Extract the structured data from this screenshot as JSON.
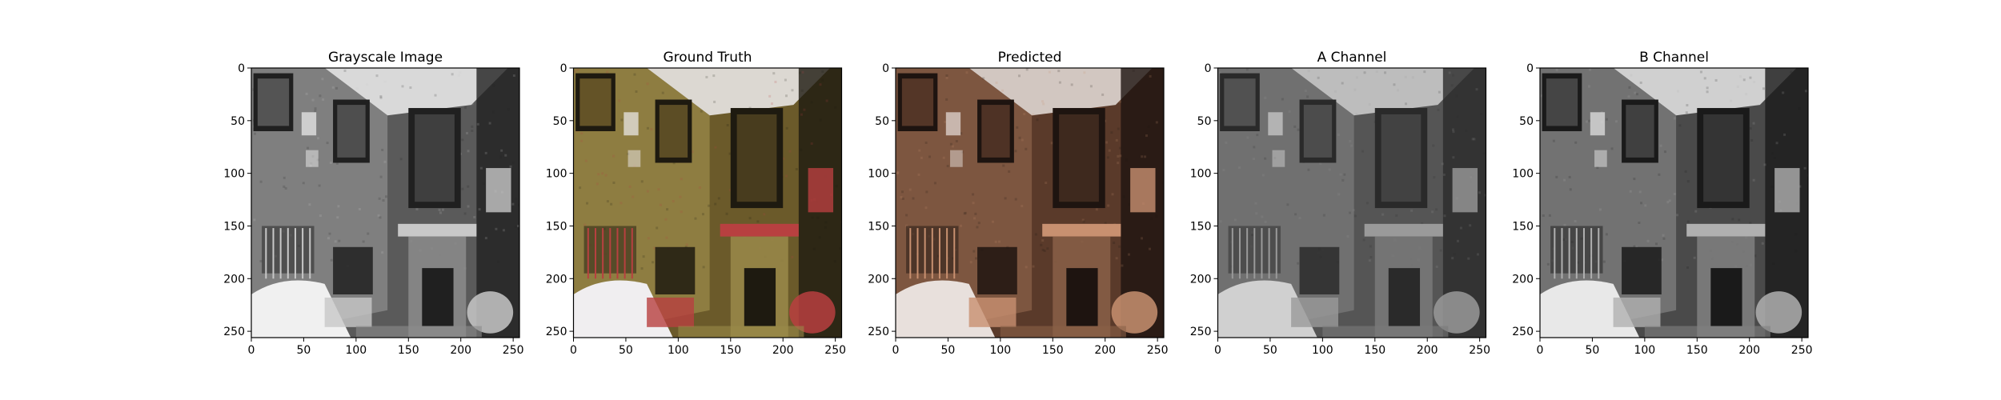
{
  "chart_data": [
    {
      "type": "image",
      "title": "Grayscale Image",
      "image_kind": "grayscale",
      "palette": [
        "#202020",
        "#5a5a5a",
        "#8c8c8c",
        "#c8c8c8",
        "#f0f0f0"
      ],
      "xlim": [
        0,
        256
      ],
      "ylim": [
        256,
        0
      ],
      "xticks": [
        0,
        50,
        100,
        150,
        200,
        250
      ],
      "yticks": [
        0,
        50,
        100,
        150,
        200,
        250
      ]
    },
    {
      "type": "image",
      "title": "Ground Truth",
      "image_kind": "color",
      "palette": [
        "#1e1a10",
        "#6b5a2a",
        "#9a8a4a",
        "#b84040",
        "#f0eef0"
      ],
      "xlim": [
        0,
        256
      ],
      "ylim": [
        256,
        0
      ],
      "xticks": [
        0,
        50,
        100,
        150,
        200,
        250
      ],
      "yticks": [
        0,
        50,
        100,
        150,
        200,
        250
      ]
    },
    {
      "type": "image",
      "title": "Predicted",
      "image_kind": "color",
      "palette": [
        "#1e1410",
        "#5a3a2a",
        "#8a6048",
        "#c89070",
        "#e8e0dc"
      ],
      "xlim": [
        0,
        256
      ],
      "ylim": [
        256,
        0
      ],
      "xticks": [
        0,
        50,
        100,
        150,
        200,
        250
      ],
      "yticks": [
        0,
        50,
        100,
        150,
        200,
        250
      ]
    },
    {
      "type": "image",
      "title": "A Channel",
      "image_kind": "grayscale",
      "palette": [
        "#2a2a2a",
        "#555555",
        "#7a7a7a",
        "#9a9a9a",
        "#d0d0d0"
      ],
      "xlim": [
        0,
        256
      ],
      "ylim": [
        256,
        0
      ],
      "xticks": [
        0,
        50,
        100,
        150,
        200,
        250
      ],
      "yticks": [
        0,
        50,
        100,
        150,
        200,
        250
      ]
    },
    {
      "type": "image",
      "title": "B Channel",
      "image_kind": "grayscale",
      "palette": [
        "#1a1a1a",
        "#4a4a4a",
        "#808080",
        "#b0b0b0",
        "#e8e8e8"
      ],
      "xlim": [
        0,
        256
      ],
      "ylim": [
        256,
        0
      ],
      "xticks": [
        0,
        50,
        100,
        150,
        200,
        250
      ],
      "yticks": [
        0,
        50,
        100,
        150,
        200,
        250
      ]
    }
  ]
}
